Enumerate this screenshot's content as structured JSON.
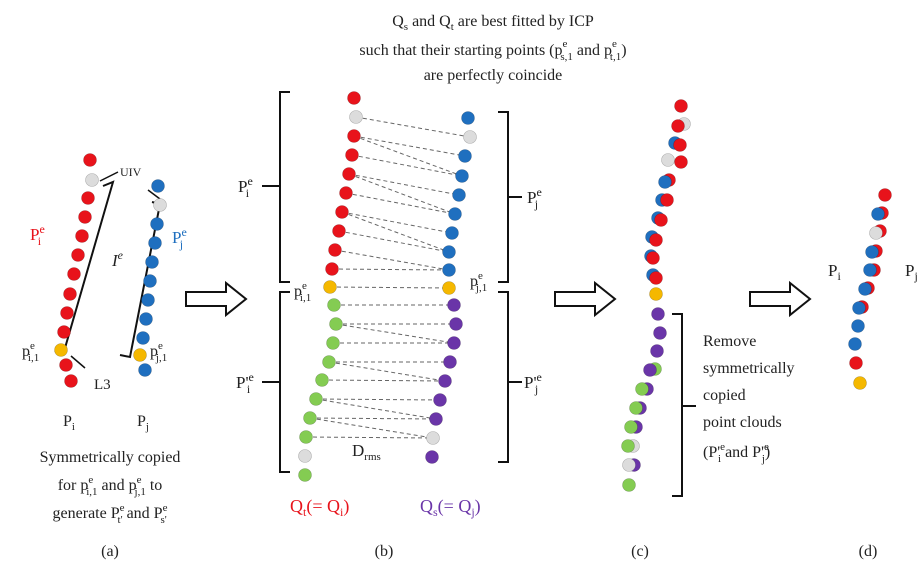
{
  "header": {
    "line1": "Qs and Qt are best fitted by ICP",
    "line2": "such that their starting points (pe s,1 and pe t,1)",
    "line3": "are perfectly coincide"
  },
  "panel_a": {
    "label_pie": "Pie",
    "label_pje": "Pje",
    "label_ie": "Ie",
    "label_uiv": "UIV",
    "label_l3": "L3",
    "label_pi1e": "pei,1",
    "label_pj1e": "pej,1",
    "label_pi": "Pi",
    "label_pj": "Pj",
    "caption_line1": "Symmetrically copied",
    "caption_line2": "for pei,1 and pej,1 to",
    "caption_line3": "generate Pt'e and Ps'e"
  },
  "panel_b": {
    "label_pie": "Pie",
    "label_pje": "Pje",
    "label_pprime_ie": "P'ie",
    "label_pprime_je": "P'je",
    "label_pi1e": "pei,1",
    "label_pj1e": "pej,1",
    "label_drms": "Drms",
    "label_qt": "Qt(= Qi)",
    "label_qs": "Qs(= Qj)"
  },
  "panel_c": {
    "caption_line1": "Remove",
    "caption_line2": "symmetrically",
    "caption_line3": "copied",
    "caption_line4": "point clouds",
    "caption_line5": "(P'ie and P'je)"
  },
  "panel_d": {
    "label_pi": "Pi",
    "label_pj": "Pj"
  },
  "panel_labels": [
    "(a)",
    "(b)",
    "(c)",
    "(d)"
  ],
  "colors": {
    "red": "#e8131b",
    "blue": "#1f6fbf",
    "green": "#84cc52",
    "purple": "#6a35a8",
    "orange": "#f5b800",
    "white_point": "#dcdcdc",
    "text": "#222222"
  }
}
